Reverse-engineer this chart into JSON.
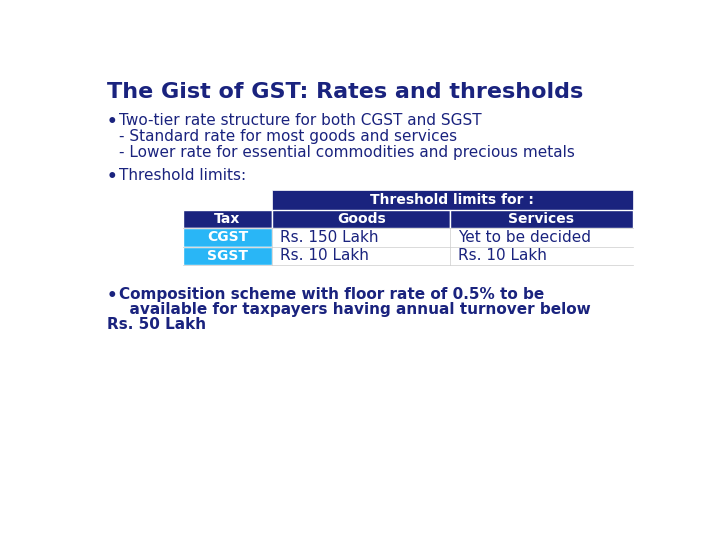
{
  "title": "The Gist of GST: Rates and thresholds",
  "title_color": "#1a237e",
  "title_fontsize": 16,
  "background_color": "#ffffff",
  "bullet_color": "#1a237e",
  "text_color": "#1a237e",
  "bullet1": "Two-tier rate structure for both CGST and SGST",
  "indent1": "- Standard rate for most goods and services",
  "indent2": "- Lower rate for essential commodities and precious metals",
  "threshold_label": "Threshold limits:",
  "threshold_title": "Threshold limits for :",
  "threshold_header_bg": "#1a237e",
  "threshold_header_color": "#ffffff",
  "table_headers": [
    "Tax",
    "Goods",
    "Services"
  ],
  "table_header_bg": "#1a237e",
  "table_header_color": "#ffffff",
  "table_rows": [
    {
      "tax": "CGST",
      "goods": "Rs. 150 Lakh",
      "services": "Yet to be decided",
      "color": "#29b6f6"
    },
    {
      "tax": "SGST",
      "goods": "Rs. 10 Lakh",
      "services": "Rs. 10 Lakh",
      "color": "#29b6f6"
    }
  ],
  "comp_line1": "Composition scheme with floor rate of 0.5% to be",
  "comp_line2": "  available for taxpayers having annual turnover below",
  "comp_line3": "Rs. 50 Lakh",
  "font_family": "DejaVu Sans",
  "body_fontsize": 11,
  "table_fontsize": 10
}
